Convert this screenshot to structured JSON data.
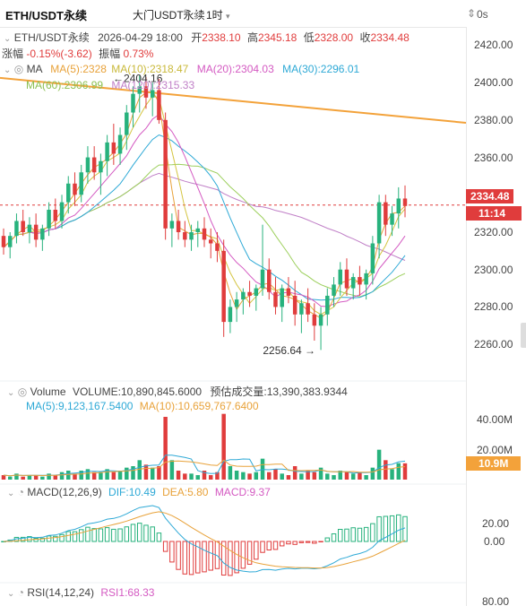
{
  "header": {
    "symbol": "ETH/USDT永续",
    "exchange": "大门USDT永续",
    "edit_icon": "pencil-icon",
    "timeframe": "1时",
    "expand_icon": "chevron-down-icon",
    "right_icon": "compare-icon",
    "extra": "0s"
  },
  "ohlc": {
    "symbol": "ETH/USDT永续",
    "date": "2026-04-29 18:00",
    "open_label": "开",
    "open": "2338.10",
    "high_label": "高",
    "high": "2345.18",
    "low_label": "低",
    "low": "2328.00",
    "close_label": "收",
    "close": "2334.48",
    "change_label": "涨幅",
    "change": "-0.15%(-3.62)",
    "amplitude_label": "振幅",
    "amplitude": "0.73%"
  },
  "ma": {
    "label": "MA",
    "ma5": "MA(5):2328",
    "ma10": "MA(10):2318.47",
    "ma20": "MA(20):2304.03",
    "ma30": "MA(30):2296.01",
    "ma60": "MA(60):2306.99",
    "ma120": "MA(120):2315.33",
    "colors": {
      "ma5": "#e8a23a",
      "ma10": "#d4c440",
      "ma20": "#d45ac2",
      "ma30": "#2ea9d6",
      "ma60": "#9ccf5c",
      "ma120": "#c07fc7"
    }
  },
  "price_axis": {
    "ticks": [
      "2420.00",
      "2400.00",
      "2380.00",
      "2360.00",
      "2340.00",
      "2320.00",
      "2300.00",
      "2280.00",
      "2260.00"
    ],
    "current_price": "2334.48",
    "countdown": "11:14"
  },
  "annotations": {
    "high_marker": "2404.16",
    "low_marker": "2256.64"
  },
  "volume": {
    "label": "Volume",
    "value": "VOLUME:10,890,845.6000",
    "forecast": "预估成交量:13,390,383.9344",
    "ma5": "MA(5):9,123,167.5400",
    "ma10": "MA(10):10,659,767.6400",
    "ticks": [
      "40.00M",
      "20.00M"
    ],
    "current": "10.9M"
  },
  "macd": {
    "label": "MACD(12,26,9)",
    "dif": "DIF:10.49",
    "dea": "DEA:5.80",
    "macd": "MACD:9.37",
    "ticks": [
      "20.00",
      "0.00"
    ]
  },
  "rsi": {
    "label": "RSI(14,12,24)",
    "rsi1": "RSI1:68.33",
    "ticks": [
      "80.00"
    ]
  },
  "colors": {
    "up": "#27b27d",
    "down": "#e03c3c",
    "trend": "#f3a23a",
    "current_badge": "#e03c3c",
    "volume_badge": "#f3a23a"
  },
  "chart_data": {
    "type": "candlestick",
    "price_ylim": [
      2250,
      2425
    ],
    "candles": [
      [
        2318,
        2322,
        2308,
        2312
      ],
      [
        2312,
        2320,
        2306,
        2318
      ],
      [
        2318,
        2330,
        2314,
        2326
      ],
      [
        2326,
        2332,
        2318,
        2320
      ],
      [
        2320,
        2328,
        2314,
        2324
      ],
      [
        2324,
        2330,
        2312,
        2316
      ],
      [
        2316,
        2324,
        2310,
        2322
      ],
      [
        2322,
        2336,
        2318,
        2332
      ],
      [
        2332,
        2338,
        2322,
        2326
      ],
      [
        2326,
        2340,
        2322,
        2336
      ],
      [
        2336,
        2350,
        2330,
        2346
      ],
      [
        2346,
        2352,
        2334,
        2340
      ],
      [
        2340,
        2356,
        2336,
        2352
      ],
      [
        2352,
        2366,
        2346,
        2360
      ],
      [
        2360,
        2366,
        2348,
        2352
      ],
      [
        2352,
        2362,
        2340,
        2358
      ],
      [
        2358,
        2372,
        2350,
        2368
      ],
      [
        2368,
        2378,
        2356,
        2362
      ],
      [
        2362,
        2376,
        2356,
        2372
      ],
      [
        2372,
        2388,
        2364,
        2384
      ],
      [
        2384,
        2398,
        2376,
        2394
      ],
      [
        2394,
        2404,
        2384,
        2398
      ],
      [
        2398,
        2403,
        2386,
        2392
      ],
      [
        2392,
        2400,
        2382,
        2396
      ],
      [
        2396,
        2402,
        2378,
        2380
      ],
      [
        2380,
        2384,
        2316,
        2322
      ],
      [
        2322,
        2330,
        2312,
        2326
      ],
      [
        2326,
        2332,
        2316,
        2320
      ],
      [
        2320,
        2326,
        2312,
        2316
      ],
      [
        2316,
        2324,
        2310,
        2320
      ],
      [
        2320,
        2326,
        2312,
        2322
      ],
      [
        2322,
        2328,
        2312,
        2316
      ],
      [
        2316,
        2322,
        2306,
        2314
      ],
      [
        2314,
        2320,
        2304,
        2310
      ],
      [
        2310,
        2316,
        2264,
        2272
      ],
      [
        2272,
        2284,
        2266,
        2280
      ],
      [
        2280,
        2288,
        2272,
        2284
      ],
      [
        2284,
        2290,
        2276,
        2288
      ],
      [
        2288,
        2294,
        2280,
        2286
      ],
      [
        2286,
        2292,
        2278,
        2290
      ],
      [
        2290,
        2324,
        2286,
        2300
      ],
      [
        2300,
        2306,
        2284,
        2288
      ],
      [
        2288,
        2296,
        2276,
        2280
      ],
      [
        2280,
        2292,
        2272,
        2290
      ],
      [
        2290,
        2296,
        2282,
        2286
      ],
      [
        2286,
        2294,
        2270,
        2276
      ],
      [
        2276,
        2284,
        2266,
        2282
      ],
      [
        2282,
        2290,
        2272,
        2276
      ],
      [
        2276,
        2282,
        2262,
        2270
      ],
      [
        2270,
        2280,
        2257,
        2276
      ],
      [
        2276,
        2290,
        2270,
        2286
      ],
      [
        2286,
        2296,
        2280,
        2292
      ],
      [
        2292,
        2304,
        2286,
        2300
      ],
      [
        2300,
        2306,
        2286,
        2290
      ],
      [
        2290,
        2298,
        2284,
        2296
      ],
      [
        2296,
        2302,
        2286,
        2292
      ],
      [
        2292,
        2300,
        2284,
        2298
      ],
      [
        2298,
        2318,
        2292,
        2314
      ],
      [
        2314,
        2340,
        2306,
        2336
      ],
      [
        2336,
        2340,
        2318,
        2324
      ],
      [
        2324,
        2334,
        2318,
        2330
      ],
      [
        2330,
        2344,
        2322,
        2338
      ],
      [
        2338,
        2345,
        2328,
        2334
      ]
    ],
    "volume_ylim": [
      0,
      45000000
    ],
    "volume": [
      3,
      2,
      4,
      2,
      3,
      3,
      2,
      4,
      3,
      5,
      6,
      4,
      6,
      7,
      5,
      5,
      7,
      5,
      6,
      8,
      9,
      13,
      10,
      8,
      9,
      42,
      13,
      6,
      4,
      4,
      3,
      6,
      3,
      5,
      44,
      9,
      6,
      5,
      4,
      5,
      14,
      5,
      7,
      4,
      3,
      9,
      4,
      6,
      5,
      8,
      4,
      3,
      6,
      5,
      4,
      5,
      3,
      8,
      20,
      13,
      7,
      11,
      10.9
    ],
    "volume_unit": "M"
  }
}
